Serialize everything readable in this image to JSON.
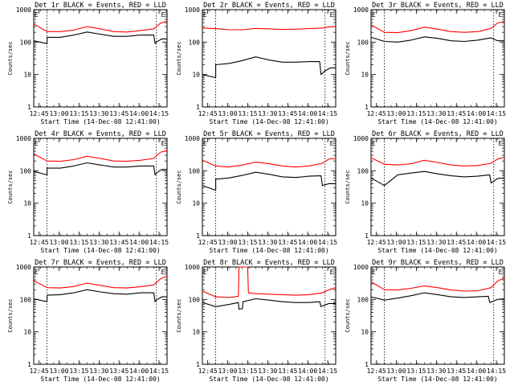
{
  "chart_data": [
    {
      "type": "line",
      "title": "Det 1r BLACK = Events, RED = LLD",
      "xlabel": "Start Time (14-Dec-08 12:41:00)",
      "ylabel": "Counts/sec",
      "yscale": "log",
      "ylim": [
        1,
        1000
      ],
      "y_ticklabels": [
        "1",
        "10",
        "100",
        "1000"
      ],
      "x_ticklabels": [
        "12:45",
        "13:00",
        "13:15",
        "13:30",
        "13:45",
        "14:00",
        "14:15"
      ],
      "x_ticks_min": [
        4,
        19,
        34,
        49,
        64,
        79,
        94
      ],
      "xlim": [
        0,
        100
      ],
      "event_markers": [
        {
          "label": "E",
          "x": 2
        },
        {
          "label": "E",
          "x": 97
        }
      ],
      "vlines": [
        10,
        92
      ],
      "series": [
        {
          "name": "Events",
          "color": "#000000",
          "x": [
            0,
            10,
            10,
            20,
            30,
            40,
            50,
            60,
            70,
            80,
            90,
            91,
            92,
            96,
            100
          ],
          "y": [
            110,
            90,
            140,
            140,
            165,
            205,
            175,
            150,
            150,
            165,
            165,
            90,
            100,
            125,
            125
          ]
        },
        {
          "name": "LLD",
          "color": "#ff0000",
          "x": [
            0,
            10,
            20,
            30,
            40,
            50,
            60,
            70,
            80,
            90,
            95,
            100
          ],
          "y": [
            360,
            210,
            210,
            235,
            300,
            255,
            210,
            205,
            225,
            255,
            380,
            440
          ]
        }
      ]
    },
    {
      "type": "line",
      "title": "Det 2r BLACK = Events, RED = LLD",
      "xlabel": "Start Time (14-Dec-08 12:41:00)",
      "ylabel": "Counts/sec",
      "yscale": "log",
      "ylim": [
        1,
        1000
      ],
      "y_ticklabels": [
        "1",
        "10",
        "100",
        "1000"
      ],
      "x_ticklabels": [
        "12:45",
        "13:00",
        "13:15",
        "13:30",
        "13:45",
        "14:00",
        "14:15"
      ],
      "x_ticks_min": [
        4,
        19,
        34,
        49,
        64,
        79,
        94
      ],
      "xlim": [
        0,
        100
      ],
      "event_markers": [
        {
          "label": "E",
          "x": 2
        },
        {
          "label": "E",
          "x": 97
        }
      ],
      "vlines": [
        10,
        92
      ],
      "series": [
        {
          "name": "Events",
          "color": "#000000",
          "x": [
            0,
            10,
            10,
            20,
            30,
            40,
            50,
            60,
            70,
            80,
            88,
            89,
            92,
            96,
            100
          ],
          "y": [
            10,
            8,
            20,
            22,
            27,
            35,
            28,
            24,
            24,
            25,
            25,
            10,
            13,
            16,
            16
          ]
        },
        {
          "name": "LLD",
          "color": "#ff0000",
          "x": [
            0,
            10,
            20,
            30,
            40,
            50,
            60,
            70,
            80,
            90,
            95,
            100
          ],
          "y": [
            270,
            260,
            240,
            240,
            265,
            255,
            245,
            250,
            260,
            270,
            295,
            300
          ]
        }
      ]
    },
    {
      "type": "line",
      "title": "Det 3r BLACK = Events, RED = LLD",
      "xlabel": "Start Time (14-Dec-08 12:41:00)",
      "ylabel": "Counts/sec",
      "yscale": "log",
      "ylim": [
        1,
        1000
      ],
      "y_ticklabels": [
        "1",
        "10",
        "100",
        "1000"
      ],
      "x_ticklabels": [
        "12:45",
        "13:00",
        "13:15",
        "13:30",
        "13:45",
        "14:00",
        "14:15"
      ],
      "x_ticks_min": [
        4,
        19,
        34,
        49,
        64,
        79,
        94
      ],
      "xlim": [
        0,
        100
      ],
      "event_markers": [
        {
          "label": "E",
          "x": 2
        },
        {
          "label": "E",
          "x": 97
        }
      ],
      "vlines": [
        10,
        92
      ],
      "series": [
        {
          "name": "Events",
          "color": "#000000",
          "x": [
            0,
            10,
            20,
            30,
            40,
            50,
            60,
            70,
            80,
            90,
            95,
            100
          ],
          "y": [
            140,
            105,
            100,
            115,
            145,
            130,
            110,
            105,
            115,
            135,
            110,
            110
          ]
        },
        {
          "name": "LLD",
          "color": "#ff0000",
          "x": [
            0,
            10,
            20,
            30,
            40,
            50,
            60,
            70,
            80,
            90,
            95,
            100
          ],
          "y": [
            340,
            200,
            195,
            225,
            290,
            250,
            210,
            200,
            210,
            265,
            390,
            430
          ]
        }
      ]
    },
    {
      "type": "line",
      "title": "Det 4r BLACK = Events, RED = LLD",
      "xlabel": "Start Time (14-Dec-08 12:41:00)",
      "ylabel": "Counts/sec",
      "yscale": "log",
      "ylim": [
        1,
        1000
      ],
      "y_ticklabels": [
        "1",
        "10",
        "100",
        "1000"
      ],
      "x_ticklabels": [
        "12:45",
        "13:00",
        "13:15",
        "13:30",
        "13:45",
        "14:00",
        "14:15"
      ],
      "x_ticks_min": [
        4,
        19,
        34,
        49,
        64,
        79,
        94
      ],
      "xlim": [
        0,
        100
      ],
      "event_markers": [
        {
          "label": "E",
          "x": 2
        },
        {
          "label": "E",
          "x": 97
        }
      ],
      "vlines": [
        10,
        92
      ],
      "series": [
        {
          "name": "Events",
          "color": "#000000",
          "x": [
            0,
            10,
            10,
            20,
            30,
            40,
            50,
            60,
            70,
            80,
            90,
            91,
            92,
            96,
            100
          ],
          "y": [
            95,
            75,
            120,
            120,
            140,
            175,
            150,
            130,
            130,
            140,
            140,
            75,
            85,
            110,
            110
          ]
        },
        {
          "name": "LLD",
          "color": "#ff0000",
          "x": [
            0,
            10,
            20,
            30,
            40,
            50,
            60,
            70,
            80,
            90,
            95,
            100
          ],
          "y": [
            330,
            200,
            195,
            220,
            280,
            240,
            200,
            195,
            210,
            240,
            370,
            420
          ]
        }
      ]
    },
    {
      "type": "line",
      "title": "Det 5r BLACK = Events, RED = LLD",
      "xlabel": "Start Time (14-Dec-08 12:41:00)",
      "ylabel": "Counts/sec",
      "yscale": "log",
      "ylim": [
        1,
        1000
      ],
      "y_ticklabels": [
        "1",
        "10",
        "100",
        "1000"
      ],
      "x_ticklabels": [
        "12:45",
        "13:00",
        "13:15",
        "13:30",
        "13:45",
        "14:00",
        "14:15"
      ],
      "x_ticks_min": [
        4,
        19,
        34,
        49,
        64,
        79,
        94
      ],
      "xlim": [
        0,
        100
      ],
      "event_markers": [
        {
          "label": "E",
          "x": 2
        },
        {
          "label": "E",
          "x": 97
        }
      ],
      "vlines": [
        10,
        92
      ],
      "series": [
        {
          "name": "Events",
          "color": "#000000",
          "x": [
            0,
            10,
            10,
            20,
            30,
            40,
            50,
            60,
            70,
            80,
            89,
            90,
            95,
            100
          ],
          "y": [
            35,
            25,
            55,
            60,
            72,
            90,
            78,
            65,
            62,
            68,
            70,
            35,
            40,
            40
          ]
        },
        {
          "name": "LLD",
          "color": "#ff0000",
          "x": [
            0,
            10,
            20,
            30,
            40,
            50,
            60,
            70,
            80,
            90,
            95,
            100
          ],
          "y": [
            210,
            140,
            130,
            150,
            185,
            165,
            140,
            130,
            140,
            170,
            230,
            240
          ]
        }
      ]
    },
    {
      "type": "line",
      "title": "Det 6r BLACK = Events, RED = LLD",
      "xlabel": "Start Time (14-Dec-08 12:41:00)",
      "ylabel": "Counts/sec",
      "yscale": "log",
      "ylim": [
        1,
        1000
      ],
      "y_ticklabels": [
        "1",
        "10",
        "100",
        "1000"
      ],
      "x_ticklabels": [
        "12:45",
        "13:00",
        "13:15",
        "13:30",
        "13:45",
        "14:00",
        "14:15"
      ],
      "x_ticks_min": [
        4,
        19,
        34,
        49,
        64,
        79,
        94
      ],
      "xlim": [
        0,
        100
      ],
      "event_markers": [
        {
          "label": "E",
          "x": 2
        },
        {
          "label": "E",
          "x": 97
        }
      ],
      "vlines": [
        10,
        92
      ],
      "series": [
        {
          "name": "Events",
          "color": "#000000",
          "x": [
            0,
            10,
            20,
            30,
            40,
            50,
            60,
            70,
            80,
            89,
            90,
            95,
            100
          ],
          "y": [
            60,
            35,
            75,
            85,
            95,
            80,
            70,
            65,
            68,
            75,
            42,
            58,
            60
          ]
        },
        {
          "name": "LLD",
          "color": "#ff0000",
          "x": [
            0,
            10,
            20,
            30,
            40,
            50,
            60,
            70,
            80,
            90,
            95,
            100
          ],
          "y": [
            250,
            160,
            150,
            165,
            210,
            180,
            150,
            140,
            145,
            170,
            230,
            260
          ]
        }
      ]
    },
    {
      "type": "line",
      "title": "Det 7r BLACK = Events, RED = LLD",
      "xlabel": "Start Time (14-Dec-08 12:41:00)",
      "ylabel": "Counts/sec",
      "yscale": "log",
      "ylim": [
        1,
        1000
      ],
      "y_ticklabels": [
        "1",
        "10",
        "100",
        "1000"
      ],
      "x_ticklabels": [
        "12:45",
        "13:00",
        "13:15",
        "13:30",
        "13:45",
        "14:00",
        "14:15"
      ],
      "x_ticks_min": [
        4,
        19,
        34,
        49,
        64,
        79,
        94
      ],
      "xlim": [
        0,
        100
      ],
      "event_markers": [
        {
          "label": "E",
          "x": 2
        },
        {
          "label": "E",
          "x": 97
        }
      ],
      "vlines": [
        10,
        92
      ],
      "series": [
        {
          "name": "Events",
          "color": "#000000",
          "x": [
            0,
            10,
            10,
            20,
            30,
            40,
            50,
            60,
            70,
            80,
            90,
            91,
            92,
            96,
            100
          ],
          "y": [
            105,
            85,
            135,
            140,
            160,
            200,
            170,
            150,
            145,
            160,
            160,
            85,
            95,
            120,
            120
          ]
        },
        {
          "name": "LLD",
          "color": "#ff0000",
          "x": [
            0,
            10,
            20,
            30,
            40,
            50,
            60,
            70,
            80,
            90,
            95,
            100
          ],
          "y": [
            380,
            230,
            225,
            250,
            320,
            270,
            230,
            225,
            245,
            280,
            430,
            520
          ]
        }
      ]
    },
    {
      "type": "line",
      "title": "Det 8r BLACK = Events, RED = LLD",
      "xlabel": "Start Time (14-Dec-08 12:41:00)",
      "ylabel": "Counts/sec",
      "yscale": "log",
      "ylim": [
        1,
        1000
      ],
      "y_ticklabels": [
        "1",
        "10",
        "100",
        "1000"
      ],
      "x_ticklabels": [
        "12:45",
        "13:00",
        "13:15",
        "13:30",
        "13:45",
        "14:00",
        "14:15"
      ],
      "x_ticks_min": [
        4,
        19,
        34,
        49,
        64,
        79,
        94
      ],
      "xlim": [
        0,
        100
      ],
      "event_markers": [
        {
          "label": "E",
          "x": 2
        },
        {
          "label": "E",
          "x": 97
        }
      ],
      "vlines": [
        10,
        92
      ],
      "series": [
        {
          "name": "Events",
          "color": "#000000",
          "x": [
            0,
            10,
            20,
            27,
            27.5,
            30,
            30.5,
            40,
            50,
            60,
            70,
            80,
            88,
            89,
            95,
            100
          ],
          "y": [
            80,
            60,
            70,
            80,
            50,
            52,
            85,
            105,
            95,
            85,
            80,
            80,
            85,
            60,
            75,
            75
          ]
        },
        {
          "name": "LLD",
          "color": "#ff0000",
          "x": [
            0,
            10,
            20,
            27,
            27.5,
            34,
            34.5,
            40,
            50,
            60,
            70,
            80,
            90,
            95,
            100
          ],
          "y": [
            180,
            120,
            115,
            125,
            1000,
            1000,
            160,
            150,
            145,
            140,
            135,
            140,
            160,
            200,
            230
          ]
        }
      ]
    },
    {
      "type": "line",
      "title": "Det 9r BLACK = Events, RED = LLD",
      "xlabel": "Start Time (14-Dec-08 12:41:00)",
      "ylabel": "Counts/sec",
      "yscale": "log",
      "ylim": [
        1,
        1000
      ],
      "y_ticklabels": [
        "1",
        "10",
        "100",
        "1000"
      ],
      "x_ticklabels": [
        "12:45",
        "13:00",
        "13:15",
        "13:30",
        "13:45",
        "14:00",
        "14:15"
      ],
      "x_ticks_min": [
        4,
        19,
        34,
        49,
        64,
        79,
        94
      ],
      "xlim": [
        0,
        100
      ],
      "event_markers": [
        {
          "label": "E",
          "x": 2
        },
        {
          "label": "E",
          "x": 97
        }
      ],
      "vlines": [
        10,
        92
      ],
      "series": [
        {
          "name": "Events",
          "color": "#000000",
          "x": [
            0,
            10,
            20,
            30,
            40,
            50,
            60,
            70,
            80,
            88,
            89,
            95,
            100
          ],
          "y": [
            120,
            95,
            110,
            130,
            160,
            140,
            120,
            115,
            120,
            125,
            80,
            100,
            105
          ]
        },
        {
          "name": "LLD",
          "color": "#ff0000",
          "x": [
            0,
            10,
            20,
            30,
            40,
            50,
            60,
            70,
            80,
            90,
            95,
            100
          ],
          "y": [
            350,
            200,
            195,
            220,
            260,
            230,
            195,
            180,
            185,
            230,
            370,
            460
          ]
        }
      ]
    }
  ]
}
